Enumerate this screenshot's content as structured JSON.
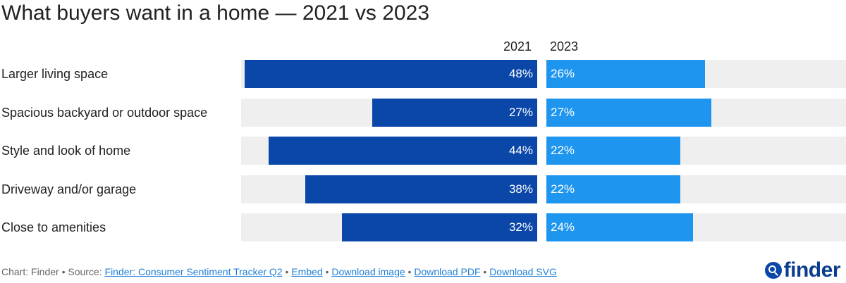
{
  "chart_data": {
    "type": "bar",
    "title": "What buyers want in a home — 2021 vs 2023",
    "categories": [
      "Larger living space",
      "Spacious backyard or outdoor space",
      "Style and look of home",
      "Driveway and/or garage",
      "Close to amenities"
    ],
    "series": [
      {
        "name": "2021",
        "values": [
          48,
          27,
          44,
          38,
          32
        ],
        "labels": [
          "48%",
          "27%",
          "44%",
          "38%",
          "32%"
        ],
        "color": "#0a47a9"
      },
      {
        "name": "2023",
        "values": [
          26,
          27,
          22,
          22,
          24
        ],
        "labels": [
          "26%",
          "27%",
          "22%",
          "22%",
          "24%"
        ],
        "color": "#1e96f0"
      }
    ],
    "track_color": "#efefef",
    "xlabel": "",
    "ylabel": ""
  },
  "footer": {
    "prefix": "Chart: Finder • Source: ",
    "source_link": "Finder: Consumer Sentiment Tracker Q2",
    "sep": " • ",
    "links": [
      "Embed",
      "Download image",
      "Download PDF",
      "Download SVG"
    ]
  },
  "logo": {
    "text": "finder",
    "icon": "search-magnifier-icon"
  }
}
